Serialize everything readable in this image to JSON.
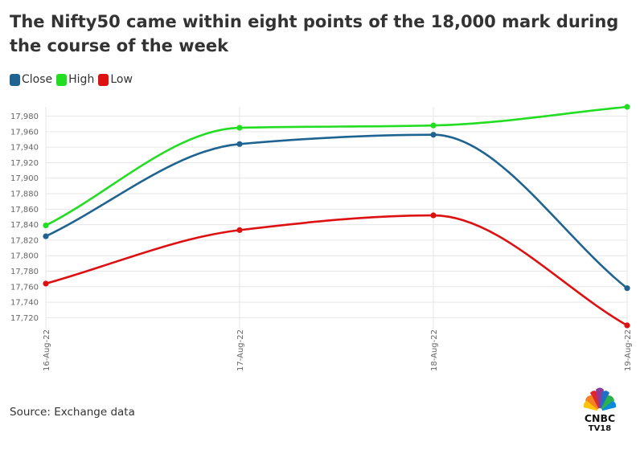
{
  "title": "The Nifty50 came within eight points of the 18,000 mark during the course of the week",
  "source": "Source: Exchange data",
  "logo": {
    "line1": "CNBC",
    "line2": "TV18"
  },
  "legend": [
    {
      "label": "Close",
      "color": "#1f6391"
    },
    {
      "label": "High",
      "color": "#22dd22"
    },
    {
      "label": "Low",
      "color": "#dd1111"
    }
  ],
  "chart_data": {
    "type": "line",
    "categories": [
      "16-Aug-22",
      "17-Aug-22",
      "18-Aug-22",
      "19-Aug-22"
    ],
    "series": [
      {
        "name": "Close",
        "color": "#1f6391",
        "values": [
          17825,
          17944,
          17956,
          17758
        ]
      },
      {
        "name": "High",
        "color": "#22dd22",
        "values": [
          17839,
          17965,
          17968,
          17992
        ]
      },
      {
        "name": "Low",
        "color": "#dd1111",
        "values": [
          17764,
          17833,
          17852,
          17710
        ]
      }
    ],
    "yticks": [
      17720,
      17740,
      17760,
      17780,
      17800,
      17820,
      17840,
      17860,
      17880,
      17900,
      17920,
      17940,
      17960,
      17980
    ],
    "ytick_labels": [
      "17,720",
      "17,740",
      "17,760",
      "17,780",
      "17,800",
      "17,820",
      "17,840",
      "17,860",
      "17,880",
      "17,900",
      "17,920",
      "17,940",
      "17,960",
      "17,980"
    ],
    "ylim": [
      17710,
      17992
    ],
    "grid": true,
    "legend_position": "top-left"
  }
}
